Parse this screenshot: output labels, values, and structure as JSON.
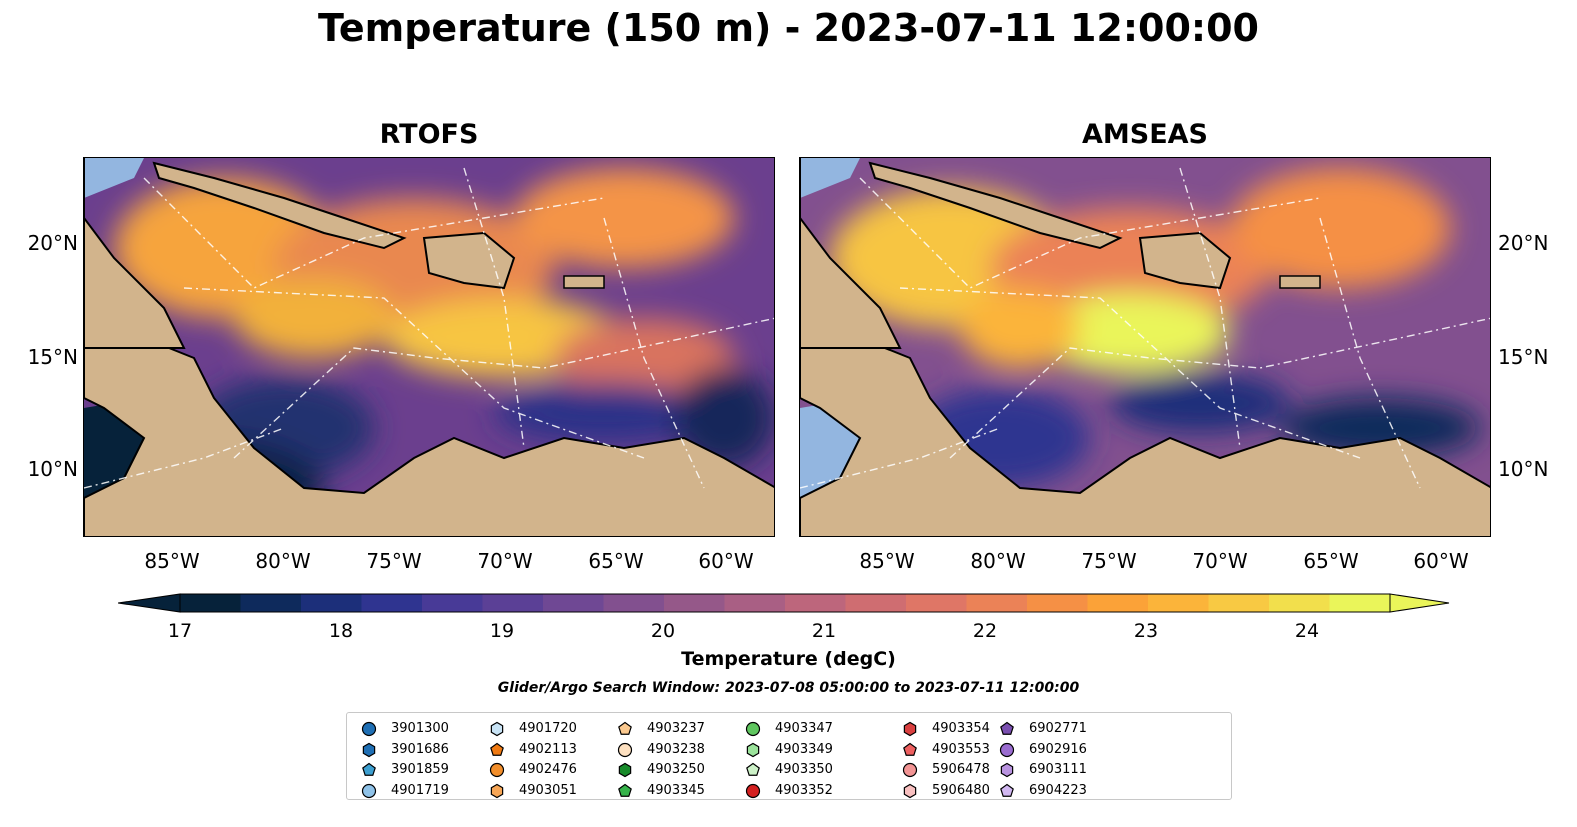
{
  "title": "Temperature (150 m) - 2023-07-11 12:00:00",
  "panels": [
    {
      "title": "RTOFS"
    },
    {
      "title": "AMSEAS"
    }
  ],
  "lat_ticks": [
    "20°N",
    "15°N",
    "10°N"
  ],
  "lon_ticks": [
    "85°W",
    "80°W",
    "75°W",
    "70°W",
    "65°W",
    "60°W"
  ],
  "colorbar": {
    "label": "Temperature (degC)",
    "ticks": [
      "17",
      "18",
      "19",
      "20",
      "21",
      "22",
      "23",
      "24"
    ],
    "colors": [
      "#06223a",
      "#0e2a5c",
      "#1c2f7a",
      "#2f3490",
      "#483a97",
      "#5b4096",
      "#6f4894",
      "#82508f",
      "#955889",
      "#a95f84",
      "#bd667c",
      "#cf6d71",
      "#df7666",
      "#eb8257",
      "#f59045",
      "#fba238",
      "#fbb43a",
      "#f8c943",
      "#f2df4c",
      "#eaf55a"
    ]
  },
  "search_window": "Glider/Argo Search Window: 2023-07-08 05:00:00 to 2023-07-11 12:00:00",
  "legend": [
    {
      "id": "3901300",
      "color": "#1f6fb4",
      "shape": "circle"
    },
    {
      "id": "3901686",
      "color": "#1f6fb4",
      "shape": "hexagon"
    },
    {
      "id": "3901859",
      "color": "#3d9fd0",
      "shape": "pentagon"
    },
    {
      "id": "4901719",
      "color": "#8fc2e8",
      "shape": "circle"
    },
    {
      "id": "4901720",
      "color": "#c8e3f5",
      "shape": "hexagon"
    },
    {
      "id": "4902113",
      "color": "#f07a12",
      "shape": "pentagon"
    },
    {
      "id": "4902476",
      "color": "#f28e2b",
      "shape": "circle"
    },
    {
      "id": "4903051",
      "color": "#f7a656",
      "shape": "hexagon"
    },
    {
      "id": "4903237",
      "color": "#fbc98f",
      "shape": "pentagon"
    },
    {
      "id": "4903238",
      "color": "#fde0c0",
      "shape": "circle"
    },
    {
      "id": "4903250",
      "color": "#178a2a",
      "shape": "hexagon"
    },
    {
      "id": "4903345",
      "color": "#36b34a",
      "shape": "pentagon"
    },
    {
      "id": "4903347",
      "color": "#5fc65f",
      "shape": "circle"
    },
    {
      "id": "4903349",
      "color": "#9be39b",
      "shape": "hexagon"
    },
    {
      "id": "4903350",
      "color": "#cdf2c8",
      "shape": "pentagon"
    },
    {
      "id": "4903352",
      "color": "#d42020",
      "shape": "circle"
    },
    {
      "id": "4903354",
      "color": "#d94040",
      "shape": "hexagon"
    },
    {
      "id": "4903553",
      "color": "#ee6060",
      "shape": "pentagon"
    },
    {
      "id": "5906478",
      "color": "#f29494",
      "shape": "circle"
    },
    {
      "id": "5906480",
      "color": "#f8c0c0",
      "shape": "hexagon"
    },
    {
      "id": "6902771",
      "color": "#7a4fb0",
      "shape": "pentagon"
    },
    {
      "id": "6902916",
      "color": "#9a6cd0",
      "shape": "circle"
    },
    {
      "id": "6903111",
      "color": "#b993e0",
      "shape": "hexagon"
    },
    {
      "id": "6904223",
      "color": "#d2b8f2",
      "shape": "pentagon"
    }
  ]
}
